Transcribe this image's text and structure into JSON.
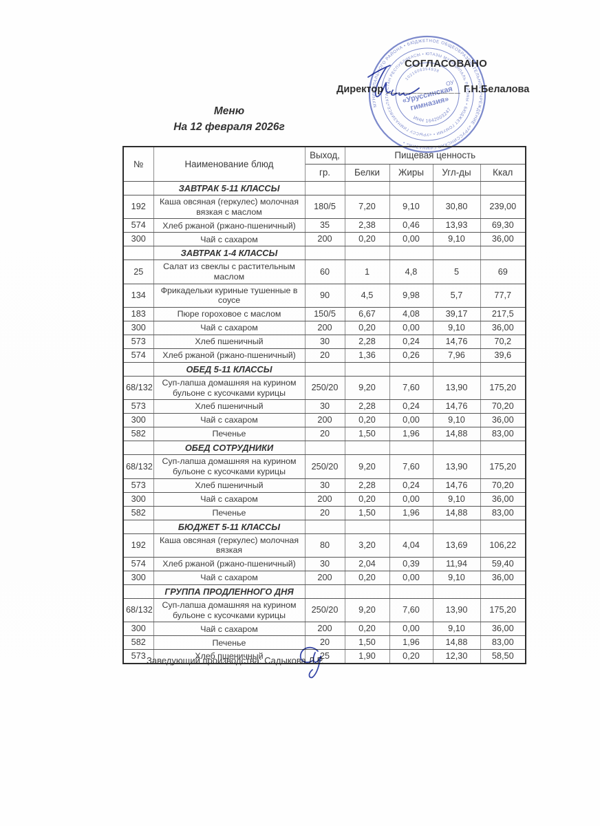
{
  "colors": {
    "stamp_blue": "#5b6cc0",
    "ink_blue": "#3747a8",
    "text": "#3c3c3c"
  },
  "approval": {
    "title": "СОГЛАСОВАНО",
    "director_label": "Директор",
    "signature_line": "____________",
    "director_name": "Г.Н.Белалова"
  },
  "stamp": {
    "ring_outer": "МУНИЦИПАЛЬНОГО РАЙОНА • БЮДЖЕТНОЕ ОБЩЕОБРАЗОВАТЕЛЬНОЕ УЧРЕЖДЕНИЕ «УРУССИНСКАЯ ГИМНАЗИЯ» •",
    "ring_middle": "ТАТАРСТАН РЕСПУБЛИКАСЫ • ЮТАЗЫ МУНИЦИПАЛЬ РАЙОНЫ • БЮДЖЕТ ГОМУМИ • «УРЫССУ ГИМНАЗИЯСЕ»",
    "ogrn_digits": "1021606354938",
    "org_abbr": "ОУ",
    "org_line1": "«Уруссинская",
    "org_line2": "гимназия»",
    "inn": "ИНН 1642003247"
  },
  "title": {
    "line1": "Меню",
    "line2": "На 12 февраля 2026г"
  },
  "table": {
    "headers": {
      "num": "№",
      "name": "Наименование блюд",
      "out_top": "Выход,",
      "out_bottom": "гр.",
      "nutrition": "Пищевая ценность",
      "protein": "Белки",
      "fat": "Жиры",
      "carbs": "Угл-ды",
      "kcal": "Ккал"
    },
    "sections": [
      {
        "title": "ЗАВТРАК 5-11 КЛАССЫ",
        "rows": [
          {
            "num": "192",
            "name": "Каша овсяная (геркулес) молочная вязкая с маслом",
            "out": "180/5",
            "b": "7,20",
            "f": "9,10",
            "c": "30,80",
            "kcal": "239,00"
          },
          {
            "num": "574",
            "name": "Хлеб ржаной (ржано-пшеничный)",
            "out": "35",
            "b": "2,38",
            "f": "0,46",
            "c": "13,93",
            "kcal": "69,30"
          },
          {
            "num": "300",
            "name": "Чай с сахаром",
            "out": "200",
            "b": "0,20",
            "f": "0,00",
            "c": "9,10",
            "kcal": "36,00"
          }
        ]
      },
      {
        "title": "ЗАВТРАК 1-4 КЛАССЫ",
        "rows": [
          {
            "num": "25",
            "name": "Салат из свеклы с растительным маслом",
            "out": "60",
            "b": "1",
            "f": "4,8",
            "c": "5",
            "kcal": "69"
          },
          {
            "num": "134",
            "name": "Фрикадельки куриные тушенные в соусе",
            "out": "90",
            "b": "4,5",
            "f": "9,98",
            "c": "5,7",
            "kcal": "77,7"
          },
          {
            "num": "183",
            "name": "Пюре гороховое с маслом",
            "out": "150/5",
            "b": "6,67",
            "f": "4,08",
            "c": "39,17",
            "kcal": "217,5"
          },
          {
            "num": "300",
            "name": "Чай с сахаром",
            "out": "200",
            "b": "0,20",
            "f": "0,00",
            "c": "9,10",
            "kcal": "36,00"
          },
          {
            "num": "573",
            "name": "Хлеб пшеничный",
            "out": "30",
            "b": "2,28",
            "f": "0,24",
            "c": "14,76",
            "kcal": "70,2"
          },
          {
            "num": "574",
            "name": "Хлеб ржаной (ржано-пшеничный)",
            "out": "20",
            "b": "1,36",
            "f": "0,26",
            "c": "7,96",
            "kcal": "39,6"
          }
        ]
      },
      {
        "title": "ОБЕД 5-11 КЛАССЫ",
        "rows": [
          {
            "num": "68/132",
            "name": "Суп-лапша домашняя на курином бульоне с кусочками курицы",
            "out": "250/20",
            "b": "9,20",
            "f": "7,60",
            "c": "13,90",
            "kcal": "175,20"
          },
          {
            "num": "573",
            "name": "Хлеб пшеничный",
            "out": "30",
            "b": "2,28",
            "f": "0,24",
            "c": "14,76",
            "kcal": "70,20"
          },
          {
            "num": "300",
            "name": "Чай с сахаром",
            "out": "200",
            "b": "0,20",
            "f": "0,00",
            "c": "9,10",
            "kcal": "36,00"
          },
          {
            "num": "582",
            "name": "Печенье",
            "out": "20",
            "b": "1,50",
            "f": "1,96",
            "c": "14,88",
            "kcal": "83,00"
          }
        ]
      },
      {
        "title": "ОБЕД СОТРУДНИКИ",
        "rows": [
          {
            "num": "68/132",
            "name": "Суп-лапша домашняя на курином бульоне с кусочками курицы",
            "out": "250/20",
            "b": "9,20",
            "f": "7,60",
            "c": "13,90",
            "kcal": "175,20"
          },
          {
            "num": "573",
            "name": "Хлеб пшеничный",
            "out": "30",
            "b": "2,28",
            "f": "0,24",
            "c": "14,76",
            "kcal": "70,20"
          },
          {
            "num": "300",
            "name": "Чай с сахаром",
            "out": "200",
            "b": "0,20",
            "f": "0,00",
            "c": "9,10",
            "kcal": "36,00"
          },
          {
            "num": "582",
            "name": "Печенье",
            "out": "20",
            "b": "1,50",
            "f": "1,96",
            "c": "14,88",
            "kcal": "83,00"
          }
        ]
      },
      {
        "title": "БЮДЖЕТ 5-11 КЛАССЫ",
        "rows": [
          {
            "num": "192",
            "name": "Каша овсяная (геркулес) молочная вязкая",
            "out": "80",
            "b": "3,20",
            "f": "4,04",
            "c": "13,69",
            "kcal": "106,22"
          },
          {
            "num": "574",
            "name": "Хлеб ржаной (ржано-пшеничный)",
            "out": "30",
            "b": "2,04",
            "f": "0,39",
            "c": "11,94",
            "kcal": "59,40"
          },
          {
            "num": "300",
            "name": "Чай с сахаром",
            "out": "200",
            "b": "0,20",
            "f": "0,00",
            "c": "9,10",
            "kcal": "36,00"
          }
        ]
      },
      {
        "title": "ГРУППА ПРОДЛЕННОГО ДНЯ",
        "rows": [
          {
            "num": "68/132",
            "name": "Суп-лапша домашняя на курином бульоне с кусочками курицы",
            "out": "250/20",
            "b": "9,20",
            "f": "7,60",
            "c": "13,90",
            "kcal": "175,20"
          },
          {
            "num": "300",
            "name": "Чай с сахаром",
            "out": "200",
            "b": "0,20",
            "f": "0,00",
            "c": "9,10",
            "kcal": "36,00"
          },
          {
            "num": "582",
            "name": "Печенье",
            "out": "20",
            "b": "1,50",
            "f": "1,96",
            "c": "14,88",
            "kcal": "83,00"
          },
          {
            "num": "573",
            "name": "Хлеб пшеничный",
            "out": "25",
            "b": "1,90",
            "f": "0,20",
            "c": "12,30",
            "kcal": "58,50"
          }
        ]
      }
    ]
  },
  "footer": {
    "label": "Заведующий производства: Садыкова Л.Р."
  }
}
